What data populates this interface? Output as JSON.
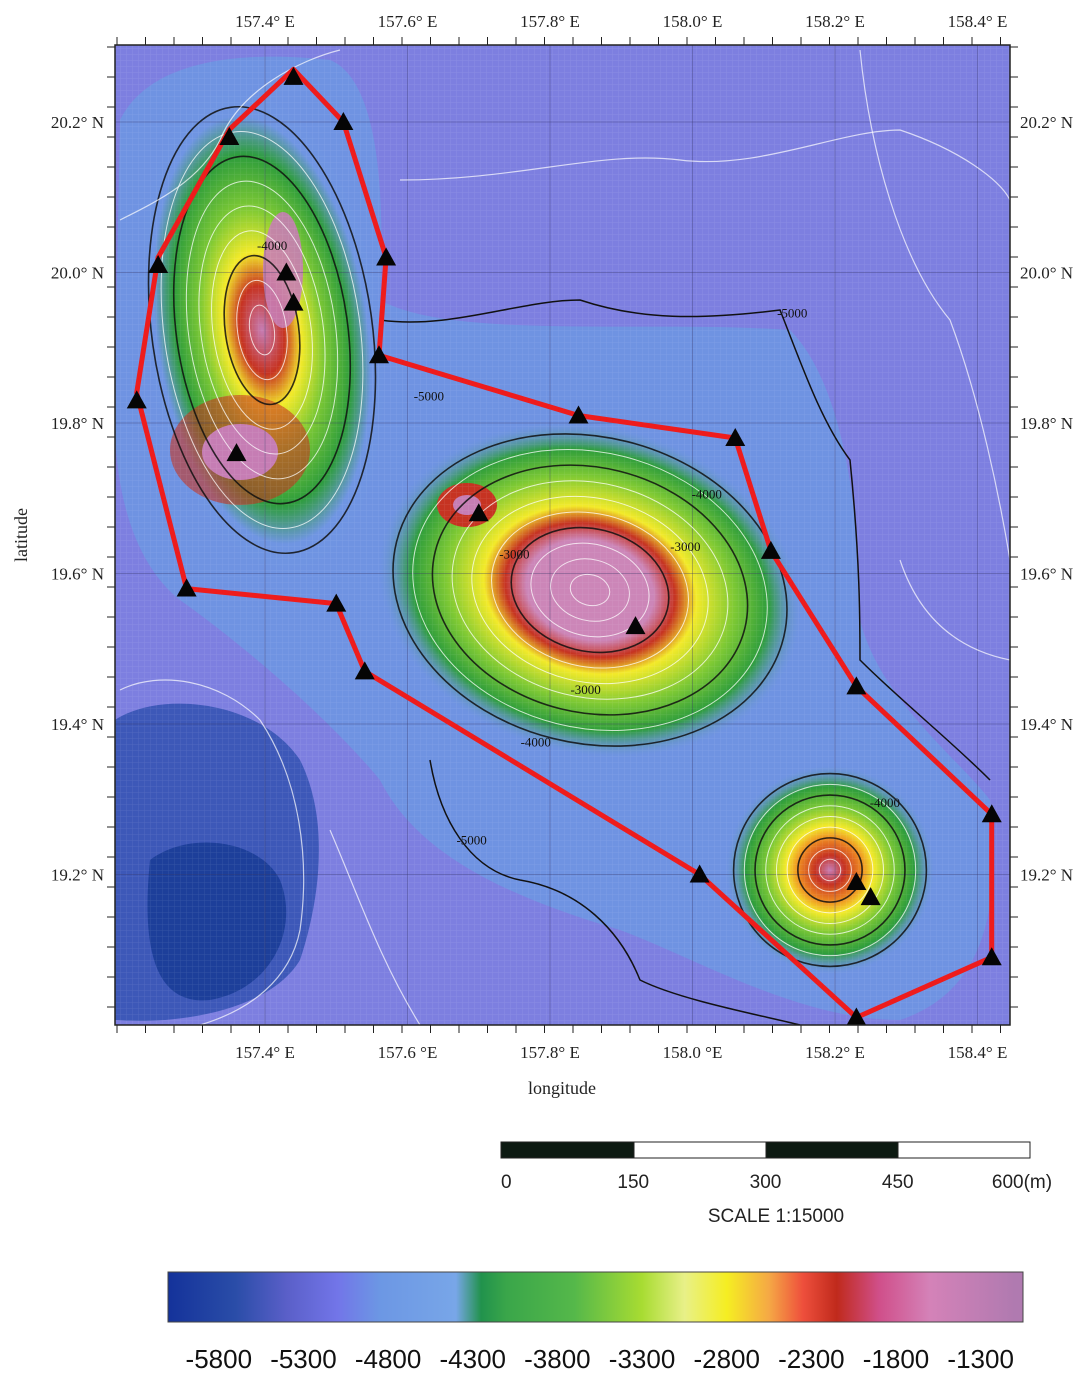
{
  "map": {
    "lon_ticks_top": [
      "157.4° E",
      "157.6° E",
      "157.8° E",
      "158.0° E",
      "158.2° E",
      "158.4° E"
    ],
    "lon_ticks_bottom": [
      "157.4° E",
      "157.6 °E",
      "157.8° E",
      "158.0 °E",
      "158.2° E",
      "158.4° E"
    ],
    "lat_ticks": [
      "20.2° N",
      "20.0° N",
      "19.8° N",
      "19.6° N",
      "19.4° N",
      "19.2° N"
    ],
    "xlabel": "longitude",
    "ylabel": "latitude",
    "contour_labels": [
      {
        "text": "-4000",
        "lon": 157.41,
        "lat": 20.03
      },
      {
        "text": "-5000",
        "lon": 158.14,
        "lat": 19.94
      },
      {
        "text": "-5000",
        "lon": 157.63,
        "lat": 19.83
      },
      {
        "text": "-4000",
        "lon": 158.02,
        "lat": 19.7
      },
      {
        "text": "-3000",
        "lon": 157.99,
        "lat": 19.63
      },
      {
        "text": "-3000",
        "lon": 157.75,
        "lat": 19.62
      },
      {
        "text": "-3000",
        "lon": 157.85,
        "lat": 19.44
      },
      {
        "text": "-4000",
        "lon": 157.78,
        "lat": 19.37
      },
      {
        "text": "-5000",
        "lon": 157.69,
        "lat": 19.24
      },
      {
        "text": "-4000",
        "lon": 158.27,
        "lat": 19.29
      }
    ],
    "boundary_polygon": [
      [
        157.44,
        20.27
      ],
      [
        157.51,
        20.2
      ],
      [
        157.57,
        20.02
      ],
      [
        157.56,
        19.89
      ],
      [
        157.84,
        19.81
      ],
      [
        158.06,
        19.78
      ],
      [
        158.11,
        19.63
      ],
      [
        158.23,
        19.45
      ],
      [
        158.42,
        19.28
      ],
      [
        158.42,
        19.09
      ],
      [
        158.23,
        19.01
      ],
      [
        158.01,
        19.2
      ],
      [
        157.54,
        19.47
      ],
      [
        157.5,
        19.56
      ],
      [
        157.29,
        19.58
      ],
      [
        157.22,
        19.84
      ],
      [
        157.25,
        20.02
      ],
      [
        157.35,
        20.19
      ]
    ],
    "sites": [
      [
        157.44,
        20.26
      ],
      [
        157.35,
        20.18
      ],
      [
        157.51,
        20.2
      ],
      [
        157.25,
        20.01
      ],
      [
        157.57,
        20.02
      ],
      [
        157.43,
        20.0
      ],
      [
        157.44,
        19.96
      ],
      [
        157.56,
        19.89
      ],
      [
        157.22,
        19.83
      ],
      [
        157.84,
        19.81
      ],
      [
        158.06,
        19.78
      ],
      [
        157.36,
        19.76
      ],
      [
        157.7,
        19.68
      ],
      [
        158.11,
        19.63
      ],
      [
        157.29,
        19.58
      ],
      [
        157.5,
        19.56
      ],
      [
        157.92,
        19.53
      ],
      [
        157.54,
        19.47
      ],
      [
        158.23,
        19.45
      ],
      [
        158.42,
        19.28
      ],
      [
        158.23,
        19.19
      ],
      [
        158.01,
        19.2
      ],
      [
        158.25,
        19.17
      ],
      [
        158.42,
        19.09
      ],
      [
        158.23,
        19.01
      ]
    ],
    "depth_colors": {
      "deep": "#1d3f9a",
      "basin": "#6f7de0",
      "plain": "#6f95e2",
      "slope_green": "#2e9d3c",
      "mid_green": "#7ec934",
      "yellow": "#f3ea2a",
      "orange": "#ee8a22",
      "red": "#c63322",
      "summit": "#c67db4"
    },
    "boundary_color": "#ee1c1c"
  },
  "scale_bar": {
    "labels": [
      "0",
      "150",
      "300",
      "450",
      "600(m)"
    ],
    "scale_text": "SCALE 1:15000"
  },
  "colorbar": {
    "labels": [
      "-5800",
      "-5300",
      "-4800",
      "-4300",
      "-3800",
      "-3300",
      "-2800",
      "-2300",
      "-1800",
      "-1300"
    ],
    "range": [
      -6100,
      -1050
    ],
    "stops": [
      {
        "value": -6100,
        "color": "#14329a"
      },
      {
        "value": -5700,
        "color": "#2a4da8"
      },
      {
        "value": -5400,
        "color": "#5a5fc8"
      },
      {
        "value": -5100,
        "color": "#7275e8"
      },
      {
        "value": -4850,
        "color": "#6c97e4"
      },
      {
        "value": -4400,
        "color": "#78a6e8"
      },
      {
        "value": -4250,
        "color": "#21924c"
      },
      {
        "value": -4100,
        "color": "#3aa64a"
      },
      {
        "value": -3700,
        "color": "#55b84a"
      },
      {
        "value": -3300,
        "color": "#a8dc32"
      },
      {
        "value": -3050,
        "color": "#e8f088"
      },
      {
        "value": -2800,
        "color": "#f5ee22"
      },
      {
        "value": -2550,
        "color": "#f5a845"
      },
      {
        "value": -2350,
        "color": "#ee4f3c"
      },
      {
        "value": -2150,
        "color": "#c02a1c"
      },
      {
        "value": -1900,
        "color": "#d04f8a"
      },
      {
        "value": -1600,
        "color": "#d482b8"
      },
      {
        "value": -1100,
        "color": "#b07ab0"
      }
    ]
  }
}
